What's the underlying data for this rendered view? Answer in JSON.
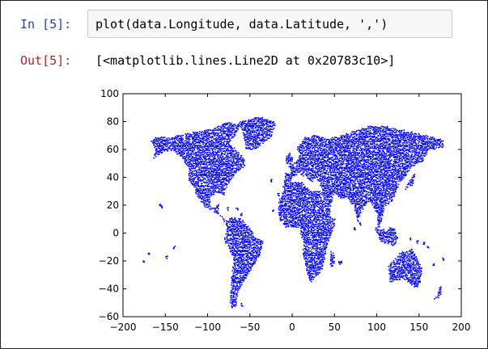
{
  "cell": {
    "input_prompt": "In [5]:",
    "code": "plot(data.Longitude, data.Latitude, ',')",
    "output_prompt": "Out[5]:",
    "output_text": "[<matplotlib.lines.Line2D at 0x20783c10>]"
  },
  "chart_data": {
    "type": "scatter",
    "title": "",
    "xlabel": "",
    "ylabel": "",
    "xlim": [
      -200,
      200
    ],
    "ylim": [
      -60,
      100
    ],
    "x_ticks": [
      -200,
      -150,
      -100,
      -50,
      0,
      50,
      100,
      150,
      200
    ],
    "y_ticks": [
      -60,
      -40,
      -20,
      0,
      20,
      40,
      60,
      80,
      100
    ],
    "grid": false,
    "marker_color": "#0000ff",
    "series": [
      {
        "points_description": "Dense pixel markers of station longitude/latitude forming outlines of the world's landmasses",
        "x": [
          -150,
          -120,
          -100,
          -80,
          -75,
          -60,
          -45,
          -65,
          -55,
          -10,
          0,
          20,
          40,
          60,
          90,
          120,
          140,
          20,
          30,
          10,
          35,
          45,
          115,
          135,
          150,
          145,
          175,
          170
        ],
        "y": [
          62,
          55,
          40,
          35,
          45,
          50,
          65,
          -5,
          -20,
          52,
          45,
          55,
          60,
          55,
          50,
          45,
          38,
          10,
          -5,
          -20,
          -25,
          -20,
          -25,
          -20,
          -30,
          -38,
          -40,
          -45
        ]
      }
    ]
  }
}
